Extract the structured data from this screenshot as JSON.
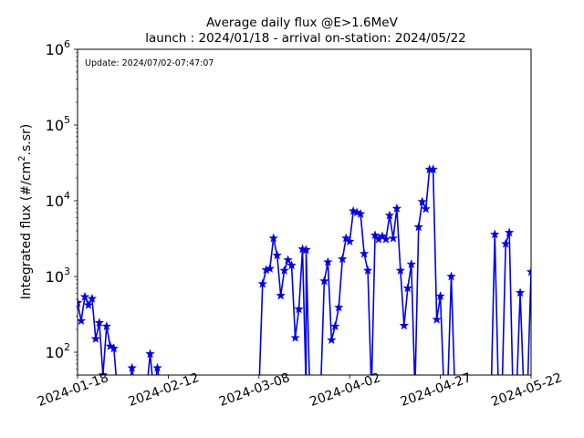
{
  "chart_data": {
    "type": "line",
    "title": "Average daily flux @E>1.6MeV",
    "subtitle": "launch : 2024/01/18 - arrival on-station: 2024/05/22",
    "ylabel_prefix": "Integrated flux (#/cm",
    "ylabel_sup": "2",
    "ylabel_suffix": ".s.sr)",
    "annotation": "Update: 2024/07/02-07:47:07",
    "yscale": "log",
    "xlim": [
      "2024-01-18",
      "2024-05-22"
    ],
    "ylim": [
      50,
      1000000
    ],
    "x_ticks": [
      "2024-01-18",
      "2024-02-12",
      "2024-03-08",
      "2024-04-02",
      "2024-04-27",
      "2024-05-22"
    ],
    "y_ticks": [
      {
        "value": 100,
        "base": "10",
        "exp": "2"
      },
      {
        "value": 1000,
        "base": "10",
        "exp": "3"
      },
      {
        "value": 10000,
        "base": "10",
        "exp": "4"
      },
      {
        "value": 100000,
        "base": "10",
        "exp": "5"
      },
      {
        "value": 1000000,
        "base": "10",
        "exp": "6"
      }
    ],
    "grid": false,
    "line_color": "#0000ee",
    "marker": "star",
    "series": [
      {
        "points": [
          [
            "2024-01-18",
            450
          ],
          [
            "2024-01-19",
            260
          ],
          [
            "2024-01-20",
            540
          ],
          [
            "2024-01-21",
            420
          ],
          [
            "2024-01-22",
            510
          ],
          [
            "2024-01-23",
            150
          ],
          [
            "2024-01-24",
            245
          ],
          [
            "2024-01-25",
            50
          ],
          [
            "2024-01-26",
            220
          ],
          [
            "2024-01-27",
            120
          ],
          [
            "2024-01-28",
            112
          ],
          [
            "2024-01-29",
            30
          ],
          [
            "2024-02-01",
            30
          ],
          [
            "2024-02-02",
            62
          ],
          [
            "2024-02-03",
            30
          ],
          [
            "2024-02-06",
            30
          ],
          [
            "2024-02-07",
            95
          ],
          [
            "2024-02-08",
            30
          ],
          [
            "2024-02-09",
            62
          ],
          [
            "2024-02-10",
            30
          ],
          [
            "2024-03-08",
            30
          ],
          [
            "2024-03-09",
            800
          ],
          [
            "2024-03-10",
            1220
          ],
          [
            "2024-03-11",
            1270
          ],
          [
            "2024-03-12",
            3200
          ],
          [
            "2024-03-13",
            1900
          ],
          [
            "2024-03-14",
            560
          ],
          [
            "2024-03-15",
            1200
          ],
          [
            "2024-03-16",
            1650
          ],
          [
            "2024-03-17",
            1400
          ],
          [
            "2024-03-18",
            155
          ],
          [
            "2024-03-19",
            370
          ],
          [
            "2024-03-20",
            2300
          ],
          [
            "2024-03-21",
            30
          ],
          [
            "2024-03-21",
            2250
          ],
          [
            "2024-03-22",
            30
          ],
          [
            "2024-03-25",
            30
          ],
          [
            "2024-03-26",
            870
          ],
          [
            "2024-03-27",
            1550
          ],
          [
            "2024-03-28",
            145
          ],
          [
            "2024-03-29",
            220
          ],
          [
            "2024-03-30",
            390
          ],
          [
            "2024-03-31",
            1700
          ],
          [
            "2024-04-01",
            3200
          ],
          [
            "2024-04-02",
            2900
          ],
          [
            "2024-04-03",
            7300
          ],
          [
            "2024-04-04",
            7000
          ],
          [
            "2024-04-05",
            6700
          ],
          [
            "2024-04-06",
            2000
          ],
          [
            "2024-04-07",
            1200
          ],
          [
            "2024-04-08",
            30
          ],
          [
            "2024-04-08",
            30
          ],
          [
            "2024-04-09",
            3500
          ],
          [
            "2024-04-10",
            3100
          ],
          [
            "2024-04-11",
            3400
          ],
          [
            "2024-04-12",
            3100
          ],
          [
            "2024-04-13",
            6400
          ],
          [
            "2024-04-14",
            3200
          ],
          [
            "2024-04-15",
            7900
          ],
          [
            "2024-04-16",
            1200
          ],
          [
            "2024-04-17",
            225
          ],
          [
            "2024-04-18",
            700
          ],
          [
            "2024-04-19",
            1450
          ],
          [
            "2024-04-20",
            30
          ],
          [
            "2024-04-21",
            4500
          ],
          [
            "2024-04-22",
            9700
          ],
          [
            "2024-04-23",
            7800
          ],
          [
            "2024-04-24",
            26000
          ],
          [
            "2024-04-25",
            26000
          ],
          [
            "2024-04-26",
            270
          ],
          [
            "2024-04-27",
            550
          ],
          [
            "2024-04-28",
            30
          ],
          [
            "2024-04-29",
            30
          ],
          [
            "2024-04-30",
            1000
          ],
          [
            "2024-05-01",
            30
          ],
          [
            "2024-05-11",
            30
          ],
          [
            "2024-05-12",
            3600
          ],
          [
            "2024-05-13",
            30
          ],
          [
            "2024-05-14",
            30
          ],
          [
            "2024-05-15",
            2700
          ],
          [
            "2024-05-16",
            3800
          ],
          [
            "2024-05-17",
            30
          ],
          [
            "2024-05-18",
            30
          ],
          [
            "2024-05-19",
            610
          ],
          [
            "2024-05-20",
            30
          ],
          [
            "2024-05-21",
            30
          ],
          [
            "2024-05-22",
            1150
          ]
        ]
      }
    ]
  }
}
